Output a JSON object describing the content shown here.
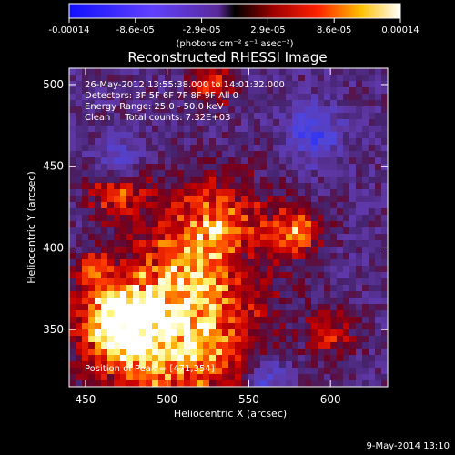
{
  "chart_data": {
    "type": "heatmap",
    "title": "Reconstructed RHESSI Image",
    "xlabel": "Heliocentric X (arcsec)",
    "ylabel": "Heliocentric Y (arcsec)",
    "xlim": [
      440,
      635
    ],
    "ylim": [
      315,
      510
    ],
    "x_ticks": [
      450,
      500,
      550,
      600
    ],
    "y_ticks": [
      350,
      400,
      450,
      500
    ],
    "colorbar": {
      "colormap": "rainbow-style blue-purple-red-yellow-white",
      "range": [
        -0.00014,
        0.00014
      ],
      "tick_labels": [
        "-0.00014",
        "-8.6e-05",
        "-2.9e-05",
        "2.9e-05",
        "8.6e-05",
        "0.00014"
      ],
      "unit_label": "(photons cm⁻² s⁻¹ asec⁻²)"
    },
    "annotations": [
      "26-May-2012 13:55:38.000 to 14:01:32.000",
      "Detectors: 3F 5F 6F 7F 8F 9F All 0",
      "Energy Range: 25.0 - 50.0 keV",
      "Clean     Total counts: 7.32E+03",
      "Position of Peak = [471,354]"
    ],
    "peak_position": [
      471,
      354
    ],
    "regions": [
      {
        "x": 505,
        "y": 348,
        "level": 1.0,
        "extent": 48
      },
      {
        "x": 471,
        "y": 354,
        "level": 1.0,
        "extent": 22
      },
      {
        "x": 470,
        "y": 438,
        "level": 0.8,
        "extent": 18
      },
      {
        "x": 530,
        "y": 408,
        "level": 0.75,
        "extent": 34
      },
      {
        "x": 580,
        "y": 410,
        "level": 0.7,
        "extent": 15
      },
      {
        "x": 528,
        "y": 500,
        "level": 0.55,
        "extent": 14
      },
      {
        "x": 600,
        "y": 348,
        "level": 0.5,
        "extent": 16
      },
      {
        "x": 455,
        "y": 385,
        "level": 0.5,
        "extent": 12
      },
      {
        "x": 470,
        "y": 450,
        "level": -0.8,
        "extent": 14
      },
      {
        "x": 590,
        "y": 470,
        "level": -0.6,
        "extent": 16
      },
      {
        "x": 545,
        "y": 390,
        "level": -0.4,
        "extent": 14
      },
      {
        "x": 560,
        "y": 320,
        "level": -0.5,
        "extent": 14
      }
    ]
  },
  "footer_date": "9-May-2014 13:10"
}
